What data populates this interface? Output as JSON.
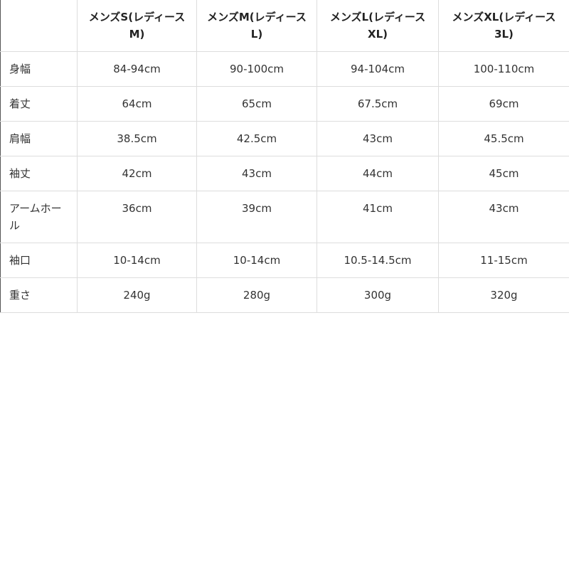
{
  "table": {
    "columns": [
      "メンズS(レディースM)",
      "メンズM(レディースL)",
      "メンズL(レディースXL)",
      "メンズXL(レディース3L)"
    ],
    "rows": [
      [
        "身幅",
        "84-94cm",
        "90-100cm",
        "94-104cm",
        "100-110cm"
      ],
      [
        "着丈",
        "64cm",
        "65cm",
        "67.5cm",
        "69cm"
      ],
      [
        "肩幅",
        "38.5cm",
        "42.5cm",
        "43cm",
        "45.5cm"
      ],
      [
        "袖丈",
        "42cm",
        "43cm",
        "44cm",
        "45cm"
      ],
      [
        "アームホール",
        "36cm",
        "39cm",
        "41cm",
        "43cm"
      ],
      [
        "袖口",
        "10-14cm",
        "10-14cm",
        "10.5-14.5cm",
        "11-15cm"
      ],
      [
        "重さ",
        "240g",
        "280g",
        "300g",
        "320g"
      ]
    ]
  }
}
